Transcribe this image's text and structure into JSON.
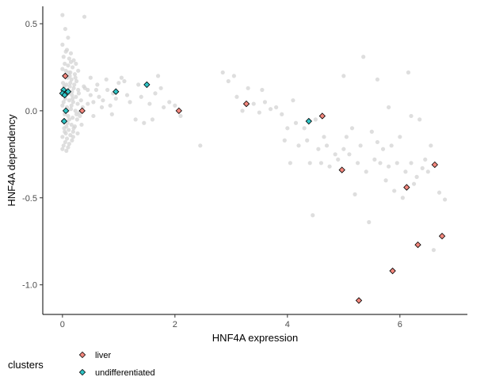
{
  "chart_data": {
    "type": "scatter",
    "xlabel": "HNF4A expression",
    "ylabel": "HNF4A dependency",
    "xlim": [
      -0.35,
      7.2
    ],
    "ylim": [
      -1.17,
      0.6
    ],
    "x_ticks": [
      0,
      2,
      4,
      6
    ],
    "x_tick_labels": [
      "0",
      "2",
      "4",
      "6"
    ],
    "y_ticks": [
      0.5,
      0.0,
      -0.5,
      -1.0
    ],
    "y_tick_labels": [
      "0.5",
      "0.0",
      "-0.5",
      "-1.0"
    ],
    "grid": false,
    "legend": {
      "title": "clusters",
      "position": "bottom-left",
      "entries": [
        {
          "label": "liver",
          "color": "#F4877D"
        },
        {
          "label": "undifferentiated",
          "color": "#2EC4C6"
        }
      ]
    },
    "series": [
      {
        "color": "#D3D3D3",
        "points": [
          [
            0.0,
            0.55
          ],
          [
            0.05,
            0.47
          ],
          [
            0.1,
            0.42
          ],
          [
            0.0,
            0.38
          ],
          [
            0.08,
            0.35
          ],
          [
            0.15,
            0.33
          ],
          [
            0.02,
            0.31
          ],
          [
            0.12,
            0.3
          ],
          [
            0.2,
            0.29
          ],
          [
            0.04,
            0.27
          ],
          [
            0.1,
            0.26
          ],
          [
            0.18,
            0.25
          ],
          [
            0.0,
            0.24
          ],
          [
            0.06,
            0.23
          ],
          [
            0.14,
            0.22
          ],
          [
            0.22,
            0.21
          ],
          [
            0.03,
            0.2
          ],
          [
            0.09,
            0.19
          ],
          [
            0.16,
            0.18
          ],
          [
            0.25,
            0.17
          ],
          [
            0.01,
            0.16
          ],
          [
            0.07,
            0.15
          ],
          [
            0.13,
            0.14
          ],
          [
            0.2,
            0.13
          ],
          [
            0.28,
            0.12
          ],
          [
            0.02,
            0.11
          ],
          [
            0.11,
            0.1
          ],
          [
            0.17,
            0.09
          ],
          [
            0.24,
            0.08
          ],
          [
            0.05,
            0.07
          ],
          [
            0.12,
            0.06
          ],
          [
            0.19,
            0.05
          ],
          [
            0.27,
            0.04
          ],
          [
            0.0,
            0.03
          ],
          [
            0.08,
            0.02
          ],
          [
            0.15,
            0.01
          ],
          [
            0.23,
            0.0
          ],
          [
            0.3,
            -0.01
          ],
          [
            0.04,
            -0.02
          ],
          [
            0.1,
            -0.03
          ],
          [
            0.18,
            -0.04
          ],
          [
            0.26,
            -0.05
          ],
          [
            0.01,
            -0.06
          ],
          [
            0.09,
            -0.07
          ],
          [
            0.16,
            -0.08
          ],
          [
            0.22,
            -0.09
          ],
          [
            0.03,
            -0.1
          ],
          [
            0.11,
            -0.11
          ],
          [
            0.19,
            -0.12
          ],
          [
            0.06,
            -0.13
          ],
          [
            0.14,
            -0.14
          ],
          [
            0.0,
            -0.15
          ],
          [
            0.08,
            -0.16
          ],
          [
            0.17,
            -0.17
          ],
          [
            0.05,
            -0.18
          ],
          [
            0.12,
            -0.19
          ],
          [
            0.02,
            -0.2
          ],
          [
            0.1,
            -0.21
          ],
          [
            0.0,
            -0.22
          ],
          [
            0.07,
            -0.23
          ],
          [
            0.13,
            0.2
          ],
          [
            0.21,
            0.15
          ],
          [
            0.29,
            0.1
          ],
          [
            0.33,
            0.06
          ],
          [
            0.36,
            0.02
          ],
          [
            0.31,
            -0.03
          ],
          [
            0.34,
            -0.08
          ],
          [
            0.27,
            -0.13
          ],
          [
            0.24,
            0.27
          ],
          [
            0.38,
            0.14
          ],
          [
            0.06,
            0.34
          ],
          [
            0.15,
            0.28
          ],
          [
            0.09,
            0.12
          ],
          [
            0.18,
            0.07
          ],
          [
            0.02,
            0.05
          ],
          [
            0.12,
            -0.05
          ],
          [
            0.2,
            -0.1
          ],
          [
            0.04,
            -0.12
          ],
          [
            0.16,
            0.03
          ],
          [
            0.25,
            -0.02
          ],
          [
            0.01,
            0.09
          ],
          [
            0.14,
            0.16
          ],
          [
            0.23,
            0.19
          ],
          [
            0.07,
            -0.09
          ],
          [
            0.11,
            0.22
          ],
          [
            0.28,
            0.23
          ],
          [
            0.19,
            -0.15
          ],
          [
            0.03,
            0.14
          ],
          [
            0.09,
            0.0
          ],
          [
            0.17,
            0.11
          ],
          [
            0.39,
            0.54
          ],
          [
            0.4,
            0.13
          ],
          [
            0.45,
            0.12
          ],
          [
            0.5,
            0.09
          ],
          [
            0.55,
            0.05
          ],
          [
            0.6,
            0.12
          ],
          [
            0.65,
            0.08
          ],
          [
            0.72,
            0.06
          ],
          [
            0.8,
            0.12
          ],
          [
            0.85,
            0.03
          ],
          [
            0.9,
            0.1
          ],
          [
            0.95,
            0.07
          ],
          [
            1.0,
            0.16
          ],
          [
            1.05,
            0.19
          ],
          [
            1.1,
            0.17
          ],
          [
            1.15,
            0.09
          ],
          [
            1.2,
            0.05
          ],
          [
            0.5,
            0.19
          ],
          [
            0.62,
            0.15
          ],
          [
            0.7,
            0.02
          ],
          [
            0.78,
            0.18
          ],
          [
            0.88,
            -0.02
          ],
          [
            0.55,
            -0.03
          ],
          [
            0.45,
            0.04
          ],
          [
            1.3,
            -0.05
          ],
          [
            1.35,
            0.15
          ],
          [
            1.4,
            0.08
          ],
          [
            1.45,
            -0.07
          ],
          [
            1.55,
            0.04
          ],
          [
            1.6,
            -0.05
          ],
          [
            1.7,
            0.2
          ],
          [
            1.75,
            0.13
          ],
          [
            1.8,
            0.02
          ],
          [
            1.9,
            0.05
          ],
          [
            1.65,
            0.1
          ],
          [
            2.0,
            0.03
          ],
          [
            2.1,
            -0.03
          ],
          [
            2.45,
            -0.2
          ],
          [
            2.85,
            0.22
          ],
          [
            2.95,
            0.17
          ],
          [
            3.05,
            0.2
          ],
          [
            3.1,
            0.08
          ],
          [
            3.2,
            0.0
          ],
          [
            3.3,
            0.13
          ],
          [
            3.4,
            0.04
          ],
          [
            3.5,
            -0.01
          ],
          [
            3.6,
            0.05
          ],
          [
            3.7,
            0.01
          ],
          [
            3.8,
            0.02
          ],
          [
            3.55,
            0.12
          ],
          [
            3.95,
            -0.17
          ],
          [
            3.9,
            -0.02
          ],
          [
            4.05,
            -0.3
          ],
          [
            4.1,
            0.06
          ],
          [
            4.15,
            -0.07
          ],
          [
            4.2,
            -0.2
          ],
          [
            4.3,
            -0.1
          ],
          [
            4.35,
            -0.17
          ],
          [
            4.4,
            -0.3
          ],
          [
            4.45,
            -0.6
          ],
          [
            4.5,
            -0.05
          ],
          [
            4.55,
            -0.22
          ],
          [
            4.6,
            -0.3
          ],
          [
            4.65,
            -0.15
          ],
          [
            4.7,
            -0.2
          ],
          [
            4.75,
            -0.32
          ],
          [
            4.85,
            -0.25
          ],
          [
            4.9,
            -0.28
          ],
          [
            5.0,
            -0.22
          ],
          [
            5.05,
            -0.15
          ],
          [
            5.1,
            -0.25
          ],
          [
            5.15,
            -0.1
          ],
          [
            5.2,
            -0.48
          ],
          [
            5.25,
            -0.3
          ],
          [
            5.3,
            -0.2
          ],
          [
            5.35,
            0.31
          ],
          [
            5.4,
            -0.35
          ],
          [
            5.45,
            -0.64
          ],
          [
            5.5,
            -0.12
          ],
          [
            5.55,
            -0.28
          ],
          [
            5.6,
            -0.18
          ],
          [
            5.65,
            -0.3
          ],
          [
            5.7,
            -0.22
          ],
          [
            5.75,
            -0.4
          ],
          [
            5.8,
            -0.32
          ],
          [
            5.85,
            -0.2
          ],
          [
            5.9,
            -0.46
          ],
          [
            5.95,
            -0.3
          ],
          [
            6.0,
            -0.15
          ],
          [
            6.05,
            -0.5
          ],
          [
            6.1,
            -0.35
          ],
          [
            6.15,
            0.22
          ],
          [
            6.2,
            -0.3
          ],
          [
            6.25,
            -0.42
          ],
          [
            6.3,
            -0.38
          ],
          [
            6.4,
            -0.33
          ],
          [
            6.45,
            -0.28
          ],
          [
            6.5,
            -0.35
          ],
          [
            6.55,
            -0.2
          ],
          [
            6.6,
            -0.8
          ],
          [
            6.7,
            -0.47
          ],
          [
            6.8,
            -0.51
          ],
          [
            5.6,
            0.18
          ],
          [
            5.0,
            0.2
          ],
          [
            6.2,
            -0.03
          ],
          [
            4.0,
            -0.1
          ],
          [
            5.8,
            0.02
          ],
          [
            6.35,
            -0.05
          ]
        ]
      },
      {
        "name": "liver",
        "color": "#F4877D",
        "points": [
          [
            0.05,
            0.2
          ],
          [
            0.35,
            0.0
          ],
          [
            2.07,
            0.0
          ],
          [
            3.27,
            0.04
          ],
          [
            4.62,
            -0.03
          ],
          [
            4.97,
            -0.34
          ],
          [
            5.27,
            -1.09
          ],
          [
            5.87,
            -0.92
          ],
          [
            6.12,
            -0.44
          ],
          [
            6.32,
            -0.77
          ],
          [
            6.62,
            -0.31
          ],
          [
            6.75,
            -0.72
          ]
        ]
      },
      {
        "name": "undifferentiated",
        "color": "#2EC4C6",
        "points": [
          [
            0.02,
            0.12
          ],
          [
            0.0,
            0.1
          ],
          [
            0.04,
            0.09
          ],
          [
            0.1,
            0.11
          ],
          [
            0.06,
            0.0
          ],
          [
            0.03,
            -0.06
          ],
          [
            0.95,
            0.11
          ],
          [
            1.5,
            0.15
          ],
          [
            4.38,
            -0.06
          ]
        ]
      }
    ]
  }
}
